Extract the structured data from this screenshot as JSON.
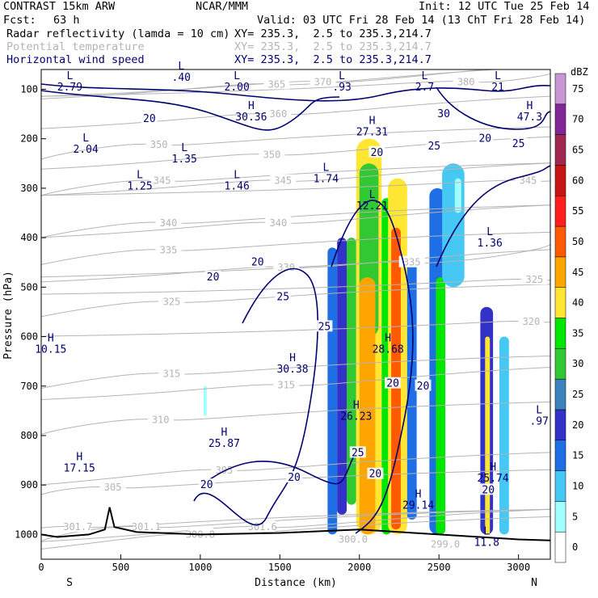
{
  "header": {
    "model": "CONTRAST 15km ARW",
    "org": "NCAR/MMM",
    "init": "Init: 12 UTC Tue 25 Feb 14",
    "fcst_label": "Fcst:",
    "fcst_value": "63 h",
    "valid": "Valid: 03 UTC Fri 28 Feb 14 (13 ChT Fri 28 Feb 14)",
    "fields": [
      {
        "name": "Radar reflectivity (lamda = 10 cm)",
        "xy": "XY= 235.3,  2.5 to 235.3,214.7",
        "color": "#000000"
      },
      {
        "name": "Potential temperature",
        "xy": "XY= 235.3,  2.5 to 235.3,214.7",
        "color": "#b4b4b4"
      },
      {
        "name": "Horizontal wind speed",
        "xy": "XY= 235.3,  2.5 to 235.3,214.7",
        "color": "#000070"
      }
    ]
  },
  "chart_data": {
    "type": "heatmap",
    "xlabel": "Distance (km)",
    "ylabel": "Pressure (hPa)",
    "xlim": [
      0,
      3200
    ],
    "ylim": [
      1050,
      60
    ],
    "xticks": [
      0,
      500,
      1000,
      1500,
      2000,
      2500,
      3000
    ],
    "yticks": [
      100,
      200,
      300,
      400,
      500,
      600,
      700,
      800,
      900,
      1000
    ],
    "x_end_labels": [
      "S",
      "N"
    ],
    "colorbar": {
      "unit": "dBZ",
      "ticks": [
        "0",
        "5",
        "10",
        "15",
        "20",
        "25",
        "30",
        "35",
        "40",
        "45",
        "50",
        "55",
        "60",
        "65",
        "70",
        "75"
      ],
      "colors": [
        "#ffffff",
        "#a0ffff",
        "#46c8f5",
        "#1e6ee6",
        "#3232c8",
        "#3c82be",
        "#32c832",
        "#00e600",
        "#ffe632",
        "#ffa500",
        "#ff5a00",
        "#ff1e1e",
        "#c81414",
        "#a02850",
        "#822896",
        "#c896d2"
      ]
    },
    "reflectivity_cells": [
      {
        "x": [
          1800,
          1860
        ],
        "p": [
          420,
          1000
        ],
        "dbz": 15
      },
      {
        "x": [
          1860,
          1920
        ],
        "p": [
          400,
          960
        ],
        "dbz": 20
      },
      {
        "x": [
          1920,
          1980
        ],
        "p": [
          400,
          940
        ],
        "dbz": 30
      },
      {
        "x": [
          1980,
          2140
        ],
        "p": [
          200,
          1000
        ],
        "dbz": 40
      },
      {
        "x": [
          2000,
          2120
        ],
        "p": [
          250,
          600
        ],
        "dbz": 30
      },
      {
        "x": [
          2000,
          2100
        ],
        "p": [
          480,
          1000
        ],
        "dbz": 45
      },
      {
        "x": [
          2140,
          2200
        ],
        "p": [
          320,
          1000
        ],
        "dbz": 35
      },
      {
        "x": [
          2180,
          2300
        ],
        "p": [
          280,
          1000
        ],
        "dbz": 40
      },
      {
        "x": [
          2200,
          2260
        ],
        "p": [
          380,
          990
        ],
        "dbz": 50
      },
      {
        "x": [
          2300,
          2360
        ],
        "p": [
          440,
          970
        ],
        "dbz": 15
      },
      {
        "x": [
          2440,
          2540
        ],
        "p": [
          300,
          1000
        ],
        "dbz": 15
      },
      {
        "x": [
          2480,
          2540
        ],
        "p": [
          480,
          1000
        ],
        "dbz": 35
      },
      {
        "x": [
          2520,
          2660
        ],
        "p": [
          250,
          500
        ],
        "dbz": 10
      },
      {
        "x": [
          2600,
          2640
        ],
        "p": [
          280,
          350
        ],
        "dbz": 5
      },
      {
        "x": [
          2760,
          2840
        ],
        "p": [
          540,
          1000
        ],
        "dbz": 20
      },
      {
        "x": [
          2790,
          2820
        ],
        "p": [
          600,
          1000
        ],
        "dbz": 40
      },
      {
        "x": [
          2880,
          2940
        ],
        "p": [
          600,
          1000
        ],
        "dbz": 10
      },
      {
        "x": [
          1020,
          1040
        ],
        "p": [
          700,
          760
        ],
        "dbz": 5
      }
    ],
    "theta_contours": [
      {
        "label": "300.8",
        "x": 1000,
        "p": 1000
      },
      {
        "label": "301.1",
        "x": 660,
        "p": 985
      },
      {
        "label": "301.6",
        "x": 1390,
        "p": 985
      },
      {
        "label": "301.7",
        "x": 230,
        "p": 985
      },
      {
        "label": "305",
        "x": 450,
        "p": 905
      },
      {
        "label": "305",
        "x": 1150,
        "p": 870
      },
      {
        "label": "310",
        "x": 750,
        "p": 768
      },
      {
        "label": "315",
        "x": 820,
        "p": 675
      },
      {
        "label": "315",
        "x": 1540,
        "p": 698
      },
      {
        "label": "320",
        "x": 3080,
        "p": 570
      },
      {
        "label": "325",
        "x": 820,
        "p": 530
      },
      {
        "label": "325",
        "x": 3100,
        "p": 485
      },
      {
        "label": "330",
        "x": 1540,
        "p": 460
      },
      {
        "label": "335",
        "x": 800,
        "p": 425
      },
      {
        "label": "335",
        "x": 2330,
        "p": 450
      },
      {
        "label": "340",
        "x": 800,
        "p": 370
      },
      {
        "label": "340",
        "x": 1490,
        "p": 370
      },
      {
        "label": "345",
        "x": 760,
        "p": 285
      },
      {
        "label": "345",
        "x": 1520,
        "p": 285
      },
      {
        "label": "345",
        "x": 3060,
        "p": 285
      },
      {
        "label": "350",
        "x": 740,
        "p": 212
      },
      {
        "label": "350",
        "x": 1450,
        "p": 232
      },
      {
        "label": "360",
        "x": 1490,
        "p": 150
      },
      {
        "label": "365",
        "x": 1480,
        "p": 90
      },
      {
        "label": "370",
        "x": 1770,
        "p": 85
      },
      {
        "label": "380",
        "x": 2670,
        "p": 85
      }
    ],
    "wind_contours": [
      {
        "label": "20",
        "x": 680,
        "p": 160
      },
      {
        "label": "30",
        "x": 2530,
        "p": 150
      },
      {
        "label": "20",
        "x": 2790,
        "p": 200
      },
      {
        "label": "25",
        "x": 3000,
        "p": 210
      },
      {
        "label": "25",
        "x": 2470,
        "p": 215
      },
      {
        "label": "20",
        "x": 2110,
        "p": 228
      },
      {
        "label": "20",
        "x": 1360,
        "p": 450
      },
      {
        "label": "20",
        "x": 1080,
        "p": 480
      },
      {
        "label": "25",
        "x": 1520,
        "p": 520
      },
      {
        "label": "25",
        "x": 1780,
        "p": 580
      },
      {
        "label": "20",
        "x": 2210,
        "p": 695
      },
      {
        "label": "20",
        "x": 2400,
        "p": 700
      },
      {
        "label": "25",
        "x": 1990,
        "p": 835
      },
      {
        "label": "20",
        "x": 2100,
        "p": 878
      },
      {
        "label": "20",
        "x": 1040,
        "p": 900
      },
      {
        "label": "20",
        "x": 1590,
        "p": 885
      },
      {
        "label": "20",
        "x": 2810,
        "p": 910
      }
    ],
    "extrema": [
      {
        "kind": "L",
        "value": "2.79",
        "x": 180,
        "p": 80,
        "field": "wind"
      },
      {
        "kind": "L",
        "value": ".40",
        "x": 880,
        "p": 60,
        "field": "wind"
      },
      {
        "kind": "L",
        "value": "2.00",
        "x": 1230,
        "p": 80,
        "field": "wind"
      },
      {
        "kind": "L",
        "value": ".93",
        "x": 1890,
        "p": 80,
        "field": "wind"
      },
      {
        "kind": "L",
        "value": "2.7",
        "x": 2410,
        "p": 80,
        "field": "wind"
      },
      {
        "kind": "L",
        "value": "21",
        "x": 2870,
        "p": 80,
        "field": "wind"
      },
      {
        "kind": "H",
        "value": "30.36",
        "x": 1320,
        "p": 140,
        "field": "wind"
      },
      {
        "kind": "H",
        "value": "27.31",
        "x": 2080,
        "p": 170,
        "field": "wind"
      },
      {
        "kind": "H",
        "value": "47.3",
        "x": 3070,
        "p": 140,
        "field": "wind"
      },
      {
        "kind": "L",
        "value": "2.04",
        "x": 280,
        "p": 205,
        "field": "wind"
      },
      {
        "kind": "L",
        "value": "1.35",
        "x": 900,
        "p": 225,
        "field": "wind"
      },
      {
        "kind": "L",
        "value": "1.25",
        "x": 620,
        "p": 280,
        "field": "wind"
      },
      {
        "kind": "L",
        "value": "1.46",
        "x": 1230,
        "p": 280,
        "field": "wind"
      },
      {
        "kind": "L",
        "value": "1.74",
        "x": 1790,
        "p": 265,
        "field": "wind"
      },
      {
        "kind": "L",
        "value": "12.21",
        "x": 2080,
        "p": 320,
        "field": "wind"
      },
      {
        "kind": "L",
        "value": "1.36",
        "x": 2820,
        "p": 395,
        "field": "wind"
      },
      {
        "kind": "H",
        "value": "10.15",
        "x": 60,
        "p": 610,
        "field": "wind"
      },
      {
        "kind": "H",
        "value": "28.68",
        "x": 2180,
        "p": 610,
        "field": "wind"
      },
      {
        "kind": "H",
        "value": "30.38",
        "x": 1580,
        "p": 650,
        "field": "wind"
      },
      {
        "kind": "H",
        "value": "26.23",
        "x": 1980,
        "p": 745,
        "field": "wind"
      },
      {
        "kind": "L",
        "value": ".97",
        "x": 3130,
        "p": 755,
        "field": "wind"
      },
      {
        "kind": "H",
        "value": "25.87",
        "x": 1150,
        "p": 800,
        "field": "wind"
      },
      {
        "kind": "H",
        "value": "17.15",
        "x": 240,
        "p": 850,
        "field": "wind"
      },
      {
        "kind": "H",
        "value": "25.74",
        "x": 2840,
        "p": 870,
        "field": "wind"
      },
      {
        "kind": "H",
        "value": "29.14",
        "x": 2370,
        "p": 925,
        "field": "wind"
      },
      {
        "kind": "L",
        "value": "11.8",
        "x": 2800,
        "p": 1000,
        "field": "wind"
      }
    ],
    "lower_labels": [
      {
        "label": "300.0",
        "x": 1960,
        "p": 1010
      },
      {
        "label": "299.0",
        "x": 2540,
        "p": 1020
      }
    ]
  }
}
